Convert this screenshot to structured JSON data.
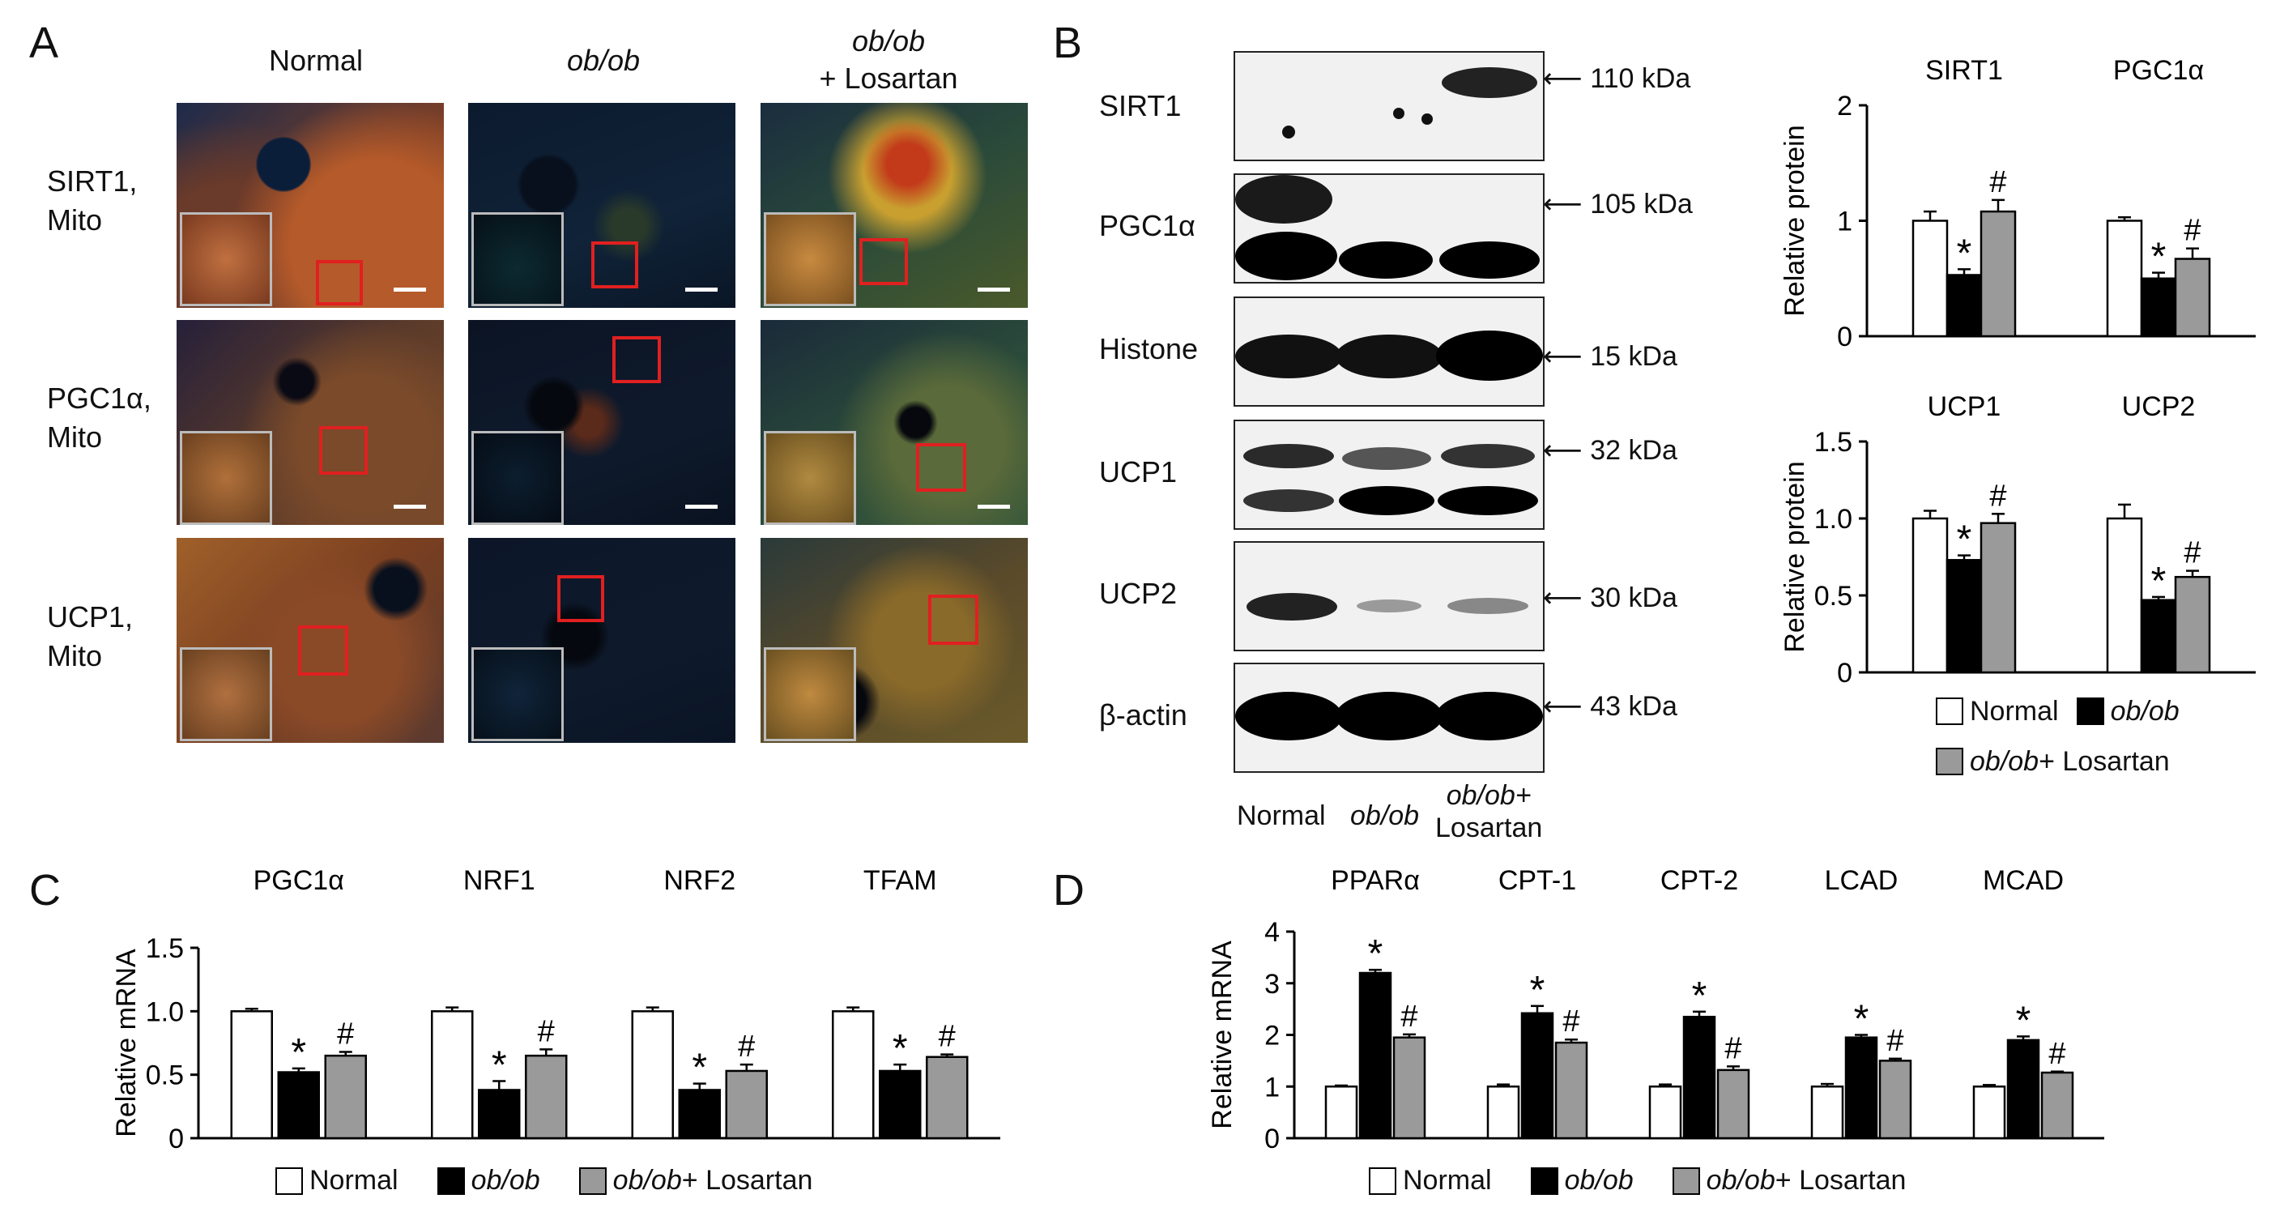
{
  "panel_a": {
    "letter": "A",
    "columns": [
      {
        "label": "Normal",
        "italic": false
      },
      {
        "label": "ob/ob",
        "italic": true
      },
      {
        "label_line1": "ob/ob",
        "label_line2": "+ Losartan"
      }
    ],
    "rows": [
      {
        "line1": "SIRT1,",
        "line2": "Mito"
      },
      {
        "line1": "PGC1α,",
        "line2": "Mito"
      },
      {
        "line1": "UCP1,",
        "line2": "Mito"
      }
    ]
  },
  "panel_b": {
    "letter": "B",
    "blots": [
      {
        "label": "SIRT1",
        "kda": "110 kDa"
      },
      {
        "label": "PGC1α",
        "kda": "105 kDa"
      },
      {
        "label": "Histone",
        "kda": "15 kDa"
      },
      {
        "label": "UCP1",
        "kda": "32 kDa"
      },
      {
        "label": "UCP2",
        "kda": "30 kDa"
      },
      {
        "label": "β-actin",
        "kda": "43 kDa"
      }
    ],
    "lanes": {
      "normal": "Normal",
      "obob": "ob/ob",
      "los_line1": "ob/ob+",
      "los_line2": "Losartan"
    }
  },
  "panel_c": {
    "letter": "C"
  },
  "panel_d": {
    "letter": "D"
  },
  "legend": {
    "normal": "Normal",
    "obob": "ob/ob",
    "obob_los": "ob/ob",
    "los_suffix": "+ Losartan"
  },
  "colors": {
    "normal": "#ffffff",
    "obob": "#000000",
    "losartan": "#9a9a9a",
    "roi": "#e02020"
  },
  "chart_data": [
    {
      "id": "B-top",
      "type": "bar",
      "ylabel": "Relative protein",
      "ylim": [
        0,
        2
      ],
      "yticks": [
        "0",
        "1",
        "2"
      ],
      "categories": [
        "SIRT1",
        "PGC1α"
      ],
      "series": [
        {
          "name": "Normal",
          "values": [
            1.0,
            1.0
          ],
          "errors": [
            0.08,
            0.03
          ]
        },
        {
          "name": "ob/ob",
          "values": [
            0.53,
            0.5
          ],
          "errors": [
            0.05,
            0.05
          ]
        },
        {
          "name": "ob/ob+ Losartan",
          "values": [
            1.08,
            0.67
          ],
          "errors": [
            0.1,
            0.09
          ]
        }
      ],
      "marks": {
        "obob": "*",
        "losartan": "#"
      }
    },
    {
      "id": "B-bottom",
      "type": "bar",
      "ylabel": "Relative protein",
      "ylim": [
        0,
        1.5
      ],
      "yticks": [
        "0",
        "0.5",
        "1.0",
        "1.5"
      ],
      "categories": [
        "UCP1",
        "UCP2"
      ],
      "series": [
        {
          "name": "Normal",
          "values": [
            1.0,
            1.0
          ],
          "errors": [
            0.05,
            0.09
          ]
        },
        {
          "name": "ob/ob",
          "values": [
            0.73,
            0.47
          ],
          "errors": [
            0.03,
            0.02
          ]
        },
        {
          "name": "ob/ob+ Losartan",
          "values": [
            0.97,
            0.62
          ],
          "errors": [
            0.06,
            0.04
          ]
        }
      ],
      "marks": {
        "obob": "*",
        "losartan": "#"
      }
    },
    {
      "id": "C",
      "type": "bar",
      "ylabel": "Relative mRNA",
      "ylim": [
        0,
        1.5
      ],
      "yticks": [
        "0",
        "0.5",
        "1.0",
        "1.5"
      ],
      "categories": [
        "PGC1α",
        "NRF1",
        "NRF2",
        "TFAM"
      ],
      "series": [
        {
          "name": "Normal",
          "values": [
            1.0,
            1.0,
            1.0,
            1.0
          ],
          "errors": [
            0.02,
            0.03,
            0.03,
            0.03
          ]
        },
        {
          "name": "ob/ob",
          "values": [
            0.52,
            0.38,
            0.38,
            0.53
          ],
          "errors": [
            0.03,
            0.07,
            0.05,
            0.05
          ]
        },
        {
          "name": "ob/ob+ Losartan",
          "values": [
            0.65,
            0.65,
            0.53,
            0.64
          ],
          "errors": [
            0.03,
            0.05,
            0.05,
            0.02
          ]
        }
      ],
      "marks": {
        "obob": "*",
        "losartan": "#"
      }
    },
    {
      "id": "D",
      "type": "bar",
      "ylabel": "Relative mRNA",
      "ylim": [
        0,
        4
      ],
      "yticks": [
        "0",
        "1",
        "2",
        "3",
        "4"
      ],
      "categories": [
        "PPARα",
        "CPT-1",
        "CPT-2",
        "LCAD",
        "MCAD"
      ],
      "series": [
        {
          "name": "Normal",
          "values": [
            1.0,
            1.0,
            1.0,
            1.0,
            1.0
          ],
          "errors": [
            0.02,
            0.04,
            0.04,
            0.05,
            0.03
          ]
        },
        {
          "name": "ob/ob",
          "values": [
            3.2,
            2.42,
            2.35,
            1.95,
            1.9
          ],
          "errors": [
            0.06,
            0.14,
            0.1,
            0.05,
            0.07
          ]
        },
        {
          "name": "ob/ob+ Losartan",
          "values": [
            1.95,
            1.85,
            1.32,
            1.5,
            1.27
          ],
          "errors": [
            0.06,
            0.06,
            0.07,
            0.04,
            0.02
          ]
        }
      ],
      "marks": {
        "obob": "*",
        "losartan": "#"
      }
    }
  ]
}
